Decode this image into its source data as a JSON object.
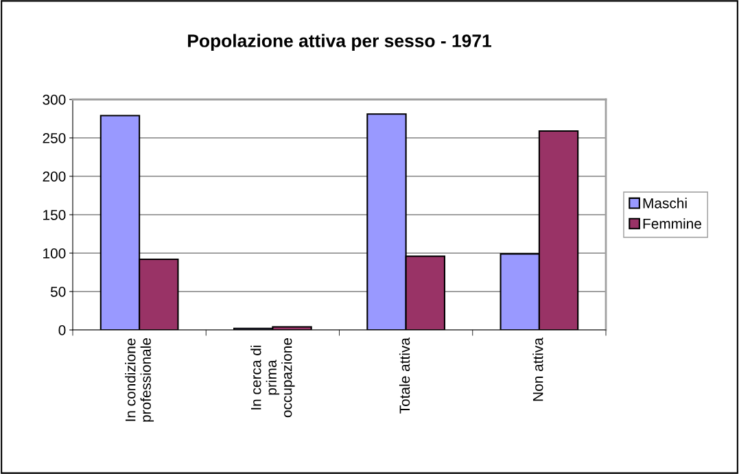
{
  "chart_data": {
    "type": "bar",
    "title": "Popolazione attiva per sesso - 1971",
    "categories": [
      "In condizione\nprofessionale",
      "In cerca di\nprima\noccupazione",
      "Totale attiva",
      "Non attiva"
    ],
    "series": [
      {
        "name": "Maschi",
        "color": "#9999ff",
        "values": [
          279,
          2,
          281,
          99
        ]
      },
      {
        "name": "Femmine",
        "color": "#993366",
        "values": [
          92,
          4,
          96,
          259
        ]
      }
    ],
    "ylim": [
      0,
      300
    ],
    "yticks": [
      0,
      50,
      100,
      150,
      200,
      250,
      300
    ],
    "grid": "y",
    "legend": "right"
  }
}
